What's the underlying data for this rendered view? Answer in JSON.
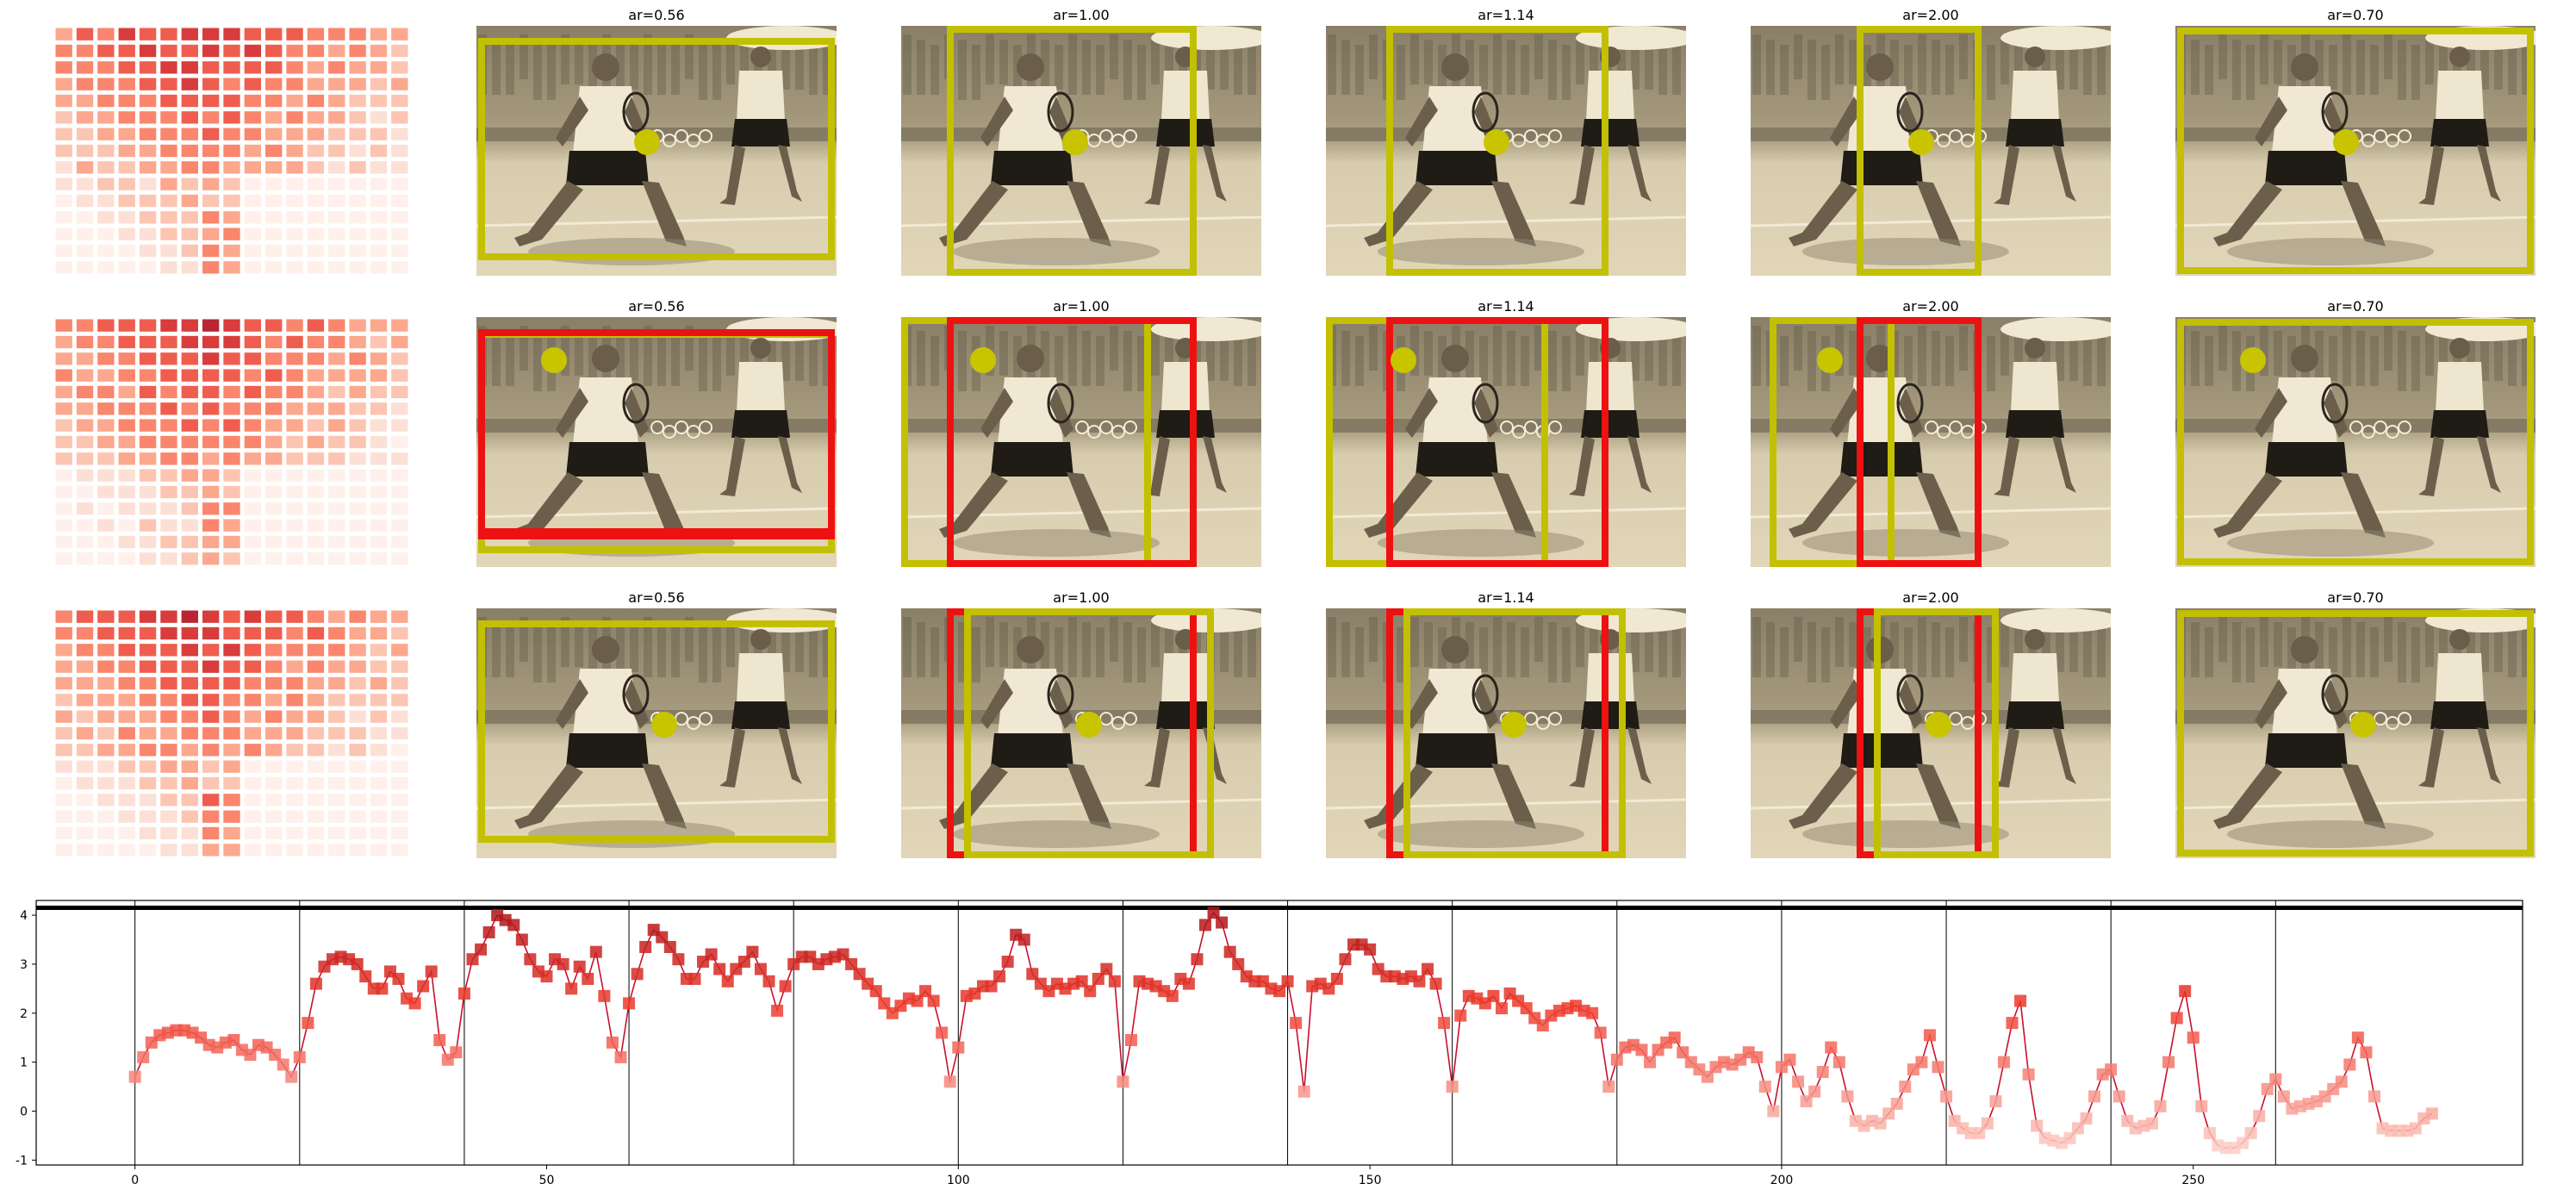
{
  "panel_titles": [
    "ar=0.56",
    "ar=1.00",
    "ar=1.14",
    "ar=2.00",
    "ar=0.70"
  ],
  "colors": {
    "box_yellow": "#c2c000",
    "box_red": "#ee1111",
    "line": "#c8102e",
    "marker_low": "#fde0d9",
    "marker_high": "#a50f15"
  },
  "heatmaps": [
    {
      "rows": 15,
      "cols": 17,
      "icon": "heatmap-grid"
    },
    {
      "rows": 15,
      "cols": 17,
      "icon": "heatmap-grid"
    },
    {
      "rows": 15,
      "cols": 17,
      "icon": "heatmap-grid"
    }
  ],
  "chart_data": {
    "type": "line",
    "xlim": [
      -12,
      290
    ],
    "ylim": [
      -1.1,
      4.3
    ],
    "xticks": [
      0,
      50,
      100,
      150,
      200,
      250
    ],
    "yticks": [
      -1,
      0,
      1,
      2,
      3,
      4
    ],
    "vlines": [
      0,
      20,
      40,
      60,
      80,
      100,
      120,
      140,
      160,
      180,
      200,
      220,
      240,
      260
    ],
    "hline": 4.15,
    "grid": false,
    "x": [
      0,
      1,
      2,
      3,
      4,
      5,
      6,
      7,
      8,
      9,
      10,
      11,
      12,
      13,
      14,
      15,
      16,
      17,
      18,
      19,
      20,
      21,
      22,
      23,
      24,
      25,
      26,
      27,
      28,
      29,
      30,
      31,
      32,
      33,
      34,
      35,
      36,
      37,
      38,
      39,
      40,
      41,
      42,
      43,
      44,
      45,
      46,
      47,
      48,
      49,
      50,
      51,
      52,
      53,
      54,
      55,
      56,
      57,
      58,
      59,
      60,
      61,
      62,
      63,
      64,
      65,
      66,
      67,
      68,
      69,
      70,
      71,
      72,
      73,
      74,
      75,
      76,
      77,
      78,
      79,
      80,
      81,
      82,
      83,
      84,
      85,
      86,
      87,
      88,
      89,
      90,
      91,
      92,
      93,
      94,
      95,
      96,
      97,
      98,
      99,
      100,
      101,
      102,
      103,
      104,
      105,
      106,
      107,
      108,
      109,
      110,
      111,
      112,
      113,
      114,
      115,
      116,
      117,
      118,
      119,
      120,
      121,
      122,
      123,
      124,
      125,
      126,
      127,
      128,
      129,
      130,
      131,
      132,
      133,
      134,
      135,
      136,
      137,
      138,
      139,
      140,
      141,
      142,
      143,
      144,
      145,
      146,
      147,
      148,
      149,
      150,
      151,
      152,
      153,
      154,
      155,
      156,
      157,
      158,
      159,
      160,
      161,
      162,
      163,
      164,
      165,
      166,
      167,
      168,
      169,
      170,
      171,
      172,
      173,
      174,
      175,
      176,
      177,
      178,
      179,
      180,
      181,
      182,
      183,
      184,
      185,
      186,
      187,
      188,
      189,
      190,
      191,
      192,
      193,
      194,
      195,
      196,
      197,
      198,
      199,
      200,
      201,
      202,
      203,
      204,
      205,
      206,
      207,
      208,
      209,
      210,
      211,
      212,
      213,
      214,
      215,
      216,
      217,
      218,
      219,
      220,
      221,
      222,
      223,
      224,
      225,
      226,
      227,
      228,
      229,
      230,
      231,
      232,
      233,
      234,
      235,
      236,
      237,
      238,
      239,
      240,
      241,
      242,
      243,
      244,
      245,
      246,
      247,
      248,
      249,
      250,
      251,
      252,
      253,
      254,
      255,
      256,
      257,
      258,
      259,
      260,
      261,
      262,
      263,
      264,
      265,
      266,
      267,
      268,
      269,
      270,
      271,
      272,
      273,
      274,
      275,
      276,
      277,
      278,
      279
    ],
    "y": [
      0.7,
      1.1,
      1.4,
      1.55,
      1.6,
      1.65,
      1.65,
      1.6,
      1.5,
      1.35,
      1.3,
      1.4,
      1.45,
      1.25,
      1.15,
      1.35,
      1.3,
      1.15,
      0.95,
      0.7,
      1.1,
      1.8,
      2.6,
      2.95,
      3.1,
      3.15,
      3.1,
      3.0,
      2.75,
      2.5,
      2.5,
      2.85,
      2.7,
      2.3,
      2.2,
      2.55,
      2.85,
      1.45,
      1.05,
      1.2,
      2.4,
      3.1,
      3.3,
      3.65,
      4.0,
      3.9,
      3.8,
      3.5,
      3.1,
      2.85,
      2.75,
      3.1,
      3.0,
      2.5,
      2.95,
      2.7,
      3.25,
      2.35,
      1.4,
      1.1,
      2.2,
      2.8,
      3.35,
      3.7,
      3.55,
      3.35,
      3.1,
      2.7,
      2.7,
      3.05,
      3.2,
      2.9,
      2.65,
      2.9,
      3.05,
      3.25,
      2.9,
      2.65,
      2.05,
      2.55,
      3.0,
      3.15,
      3.15,
      3.0,
      3.1,
      3.15,
      3.2,
      3.0,
      2.8,
      2.6,
      2.45,
      2.2,
      2.0,
      2.15,
      2.3,
      2.25,
      2.45,
      2.25,
      1.6,
      0.6,
      1.3,
      2.35,
      2.4,
      2.55,
      2.55,
      2.75,
      3.05,
      3.6,
      3.5,
      2.8,
      2.6,
      2.45,
      2.6,
      2.5,
      2.6,
      2.65,
      2.45,
      2.7,
      2.9,
      2.65,
      0.6,
      1.45,
      2.65,
      2.6,
      2.55,
      2.45,
      2.35,
      2.7,
      2.6,
      3.1,
      3.8,
      4.05,
      3.85,
      3.25,
      3.0,
      2.75,
      2.65,
      2.65,
      2.5,
      2.45,
      2.65,
      1.8,
      0.4,
      2.55,
      2.6,
      2.5,
      2.7,
      3.1,
      3.4,
      3.4,
      3.3,
      2.9,
      2.75,
      2.75,
      2.7,
      2.75,
      2.65,
      2.9,
      2.6,
      1.8,
      0.5,
      1.95,
      2.35,
      2.3,
      2.2,
      2.35,
      2.1,
      2.4,
      2.25,
      2.1,
      1.9,
      1.75,
      1.95,
      2.05,
      2.1,
      2.15,
      2.05,
      2.0,
      1.6,
      0.5,
      1.05,
      1.3,
      1.35,
      1.25,
      1.0,
      1.25,
      1.4,
      1.5,
      1.2,
      1.0,
      0.85,
      0.7,
      0.9,
      1.0,
      0.95,
      1.05,
      1.2,
      1.1,
      0.5,
      0.0,
      0.9,
      1.05,
      0.6,
      0.2,
      0.4,
      0.8,
      1.3,
      1.0,
      0.3,
      -0.2,
      -0.3,
      -0.2,
      -0.25,
      -0.05,
      0.15,
      0.5,
      0.85,
      1.0,
      1.55,
      0.9,
      0.3,
      -0.2,
      -0.35,
      -0.45,
      -0.45,
      -0.25,
      0.2,
      1.0,
      1.8,
      2.25,
      0.75,
      -0.3,
      -0.55,
      -0.6,
      -0.65,
      -0.55,
      -0.35,
      -0.15,
      0.3,
      0.75,
      0.85,
      0.3,
      -0.2,
      -0.35,
      -0.3,
      -0.25,
      0.1,
      1.0,
      1.9,
      2.45,
      1.5,
      0.1,
      -0.45,
      -0.7,
      -0.75,
      -0.75,
      -0.65,
      -0.45,
      -0.1,
      0.45,
      0.65,
      0.3,
      0.05,
      0.1,
      0.15,
      0.2,
      0.3,
      0.45,
      0.6,
      0.95,
      1.5,
      1.2,
      0.3,
      -0.35,
      -0.4,
      -0.4,
      -0.4,
      -0.35,
      -0.15,
      -0.05
    ]
  }
}
